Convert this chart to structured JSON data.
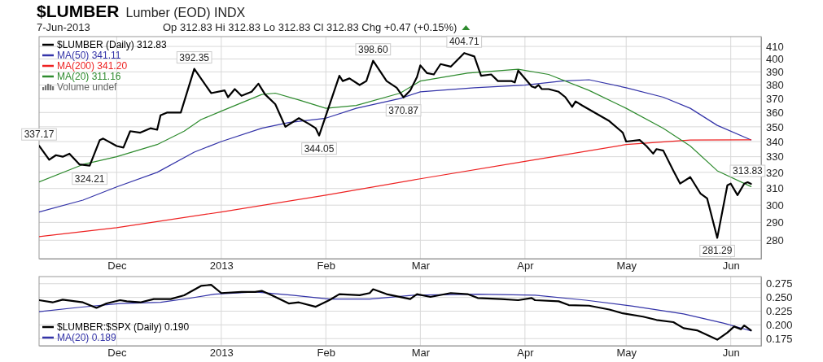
{
  "chart_data": [
    {
      "type": "line",
      "title": "$LUMBER",
      "subtitle": "Lumber (EOD) INDX",
      "log": true,
      "grid": true,
      "legend": "top left",
      "xlim": [
        "2012-11-08",
        "2013-06-10"
      ],
      "xticks": [
        {
          "value": "2012-12-01",
          "label": "Dec"
        },
        {
          "value": "2013-01-01",
          "label": "2013"
        },
        {
          "value": "2013-02-01",
          "label": "Feb"
        },
        {
          "value": "2013-03-01",
          "label": "Mar"
        },
        {
          "value": "2013-04-01",
          "label": "Apr"
        },
        {
          "value": "2013-05-01",
          "label": "May"
        },
        {
          "value": "2013-06-01",
          "label": "Jun"
        }
      ],
      "ylim": [
        270,
        418
      ],
      "yticks": [
        280,
        290,
        300,
        310,
        320,
        330,
        340,
        350,
        360,
        370,
        380,
        390,
        400,
        410
      ],
      "series": [
        {
          "name": "$LUMBER (Daily) 312.83",
          "color": "#000000",
          "x": [
            "2012-11-08",
            "2012-11-11",
            "2012-11-13",
            "2012-11-15",
            "2012-11-17",
            "2012-11-20",
            "2012-11-23",
            "2012-11-26",
            "2012-11-27",
            "2012-12-01",
            "2012-12-03",
            "2012-12-05",
            "2012-12-08",
            "2012-12-11",
            "2012-12-13",
            "2012-12-14",
            "2012-12-16",
            "2012-12-20",
            "2012-12-24",
            "2012-12-29",
            "2013-01-02",
            "2013-01-03",
            "2013-01-05",
            "2013-01-07",
            "2013-01-10",
            "2013-01-12",
            "2013-01-14",
            "2013-01-17",
            "2013-01-20",
            "2013-01-24",
            "2013-01-27",
            "2013-01-29",
            "2013-01-30",
            "2013-02-05",
            "2013-02-06",
            "2013-02-08",
            "2013-02-11",
            "2013-02-13",
            "2013-02-15",
            "2013-02-19",
            "2013-02-22",
            "2013-02-24",
            "2013-02-26",
            "2013-02-28",
            "2013-03-01",
            "2013-03-03",
            "2013-03-05",
            "2013-03-07",
            "2013-03-10",
            "2013-03-14",
            "2013-03-17",
            "2013-03-19",
            "2013-03-22",
            "2013-03-24",
            "2013-03-28",
            "2013-03-29",
            "2013-03-30",
            "2013-04-03",
            "2013-04-04",
            "2013-04-05",
            "2013-04-06",
            "2013-04-08",
            "2013-04-11",
            "2013-04-13",
            "2013-04-15",
            "2013-04-16",
            "2013-04-18",
            "2013-04-26",
            "2013-04-30",
            "2013-05-01",
            "2013-05-05",
            "2013-05-07",
            "2013-05-09",
            "2013-05-10",
            "2013-05-12",
            "2013-05-15",
            "2013-05-17",
            "2013-05-20",
            "2013-05-23",
            "2013-05-25",
            "2013-05-28",
            "2013-05-31",
            "2013-06-01",
            "2013-06-03",
            "2013-06-05",
            "2013-06-06",
            "2013-06-07"
          ],
          "values": [
            337.17,
            328,
            331,
            330,
            332,
            325,
            324.21,
            341,
            342,
            337,
            336,
            347,
            346,
            349,
            348,
            358,
            360,
            360,
            392.35,
            374,
            376,
            371,
            377,
            372,
            375,
            381,
            373,
            366,
            350,
            356,
            352,
            349,
            344.05,
            387,
            383,
            385,
            380,
            383,
            398.6,
            383,
            378,
            370.87,
            376,
            386,
            395,
            389,
            388,
            396,
            394,
            404.71,
            402,
            387,
            388,
            383,
            383,
            382,
            391,
            379,
            378,
            380,
            377,
            377,
            375,
            371,
            364,
            368,
            365,
            354,
            346,
            340,
            341,
            337,
            332,
            335,
            334,
            321,
            313,
            317,
            307,
            304,
            281.29,
            312,
            313,
            306,
            313,
            313.83,
            312.83
          ]
        },
        {
          "name": "MA(50) 341.11",
          "color": "#3333a8",
          "x": [
            "2012-11-08",
            "2012-11-21",
            "2012-12-01",
            "2012-12-13",
            "2012-12-24",
            "2013-01-01",
            "2013-01-13",
            "2013-01-21",
            "2013-02-01",
            "2013-02-10",
            "2013-02-23",
            "2013-03-01",
            "2013-03-17",
            "2013-04-01",
            "2013-04-12",
            "2013-04-20",
            "2013-05-01",
            "2013-05-12",
            "2013-05-20",
            "2013-05-28",
            "2013-06-07"
          ],
          "values": [
            296,
            303,
            311,
            320,
            333,
            340,
            349,
            353,
            356,
            363,
            370,
            375,
            378,
            380,
            383,
            384,
            378,
            371,
            363,
            351,
            341.11
          ]
        },
        {
          "name": "MA(200) 341.20",
          "color": "#ee2222",
          "x": [
            "2012-11-08",
            "2012-12-01",
            "2013-01-01",
            "2013-02-01",
            "2013-03-01",
            "2013-04-01",
            "2013-05-01",
            "2013-05-20",
            "2013-06-07"
          ],
          "values": [
            282,
            287,
            296,
            306,
            316,
            327,
            338,
            341,
            341.2
          ]
        },
        {
          "name": "MA(20) 311.16",
          "color": "#2e8b2e",
          "x": [
            "2012-11-08",
            "2012-11-21",
            "2012-12-01",
            "2012-12-13",
            "2012-12-21",
            "2012-12-26",
            "2013-01-01",
            "2013-01-13",
            "2013-01-17",
            "2013-01-24",
            "2013-02-01",
            "2013-02-10",
            "2013-02-23",
            "2013-03-01",
            "2013-03-15",
            "2013-03-30",
            "2013-04-08",
            "2013-04-20",
            "2013-05-01",
            "2013-05-12",
            "2013-05-20",
            "2013-05-28",
            "2013-06-07"
          ],
          "values": [
            314,
            325,
            330,
            338,
            347,
            355,
            361,
            373,
            374,
            369,
            363,
            365,
            374,
            383,
            389,
            392,
            388,
            376,
            363,
            349,
            337,
            321,
            311.16
          ]
        }
      ],
      "annotations": [
        "7-Jun-2013",
        "Op 312.83 Hi 312.83 Lo 312.83 Cl 312.83 Chg +0.47 (+0.15%)",
        "Volume undef",
        {
          "text": "337.17",
          "x": "2012-11-08",
          "y": 337.17
        },
        {
          "text": "324.21",
          "x": "2012-11-23",
          "y": 324.21
        },
        {
          "text": "392.35",
          "x": "2012-12-24",
          "y": 392.35
        },
        {
          "text": "344.05",
          "x": "2013-01-30",
          "y": 344.05
        },
        {
          "text": "398.60",
          "x": "2013-02-15",
          "y": 398.6
        },
        {
          "text": "370.87",
          "x": "2013-02-24",
          "y": 370.87
        },
        {
          "text": "404.71",
          "x": "2013-03-14",
          "y": 404.71
        },
        {
          "text": "281.29",
          "x": "2013-05-28",
          "y": 281.29
        },
        {
          "text": "313.83",
          "x": "2013-06-06",
          "y": 313.83
        }
      ]
    },
    {
      "type": "line",
      "grid": true,
      "legend": "bottom left",
      "xlim": [
        "2012-11-08",
        "2013-06-10"
      ],
      "xticks": [
        {
          "value": "2012-12-01",
          "label": "Dec"
        },
        {
          "value": "2013-01-01",
          "label": "2013"
        },
        {
          "value": "2013-02-01",
          "label": "Feb"
        },
        {
          "value": "2013-03-01",
          "label": "Mar"
        },
        {
          "value": "2013-04-01",
          "label": "Apr"
        },
        {
          "value": "2013-05-01",
          "label": "May"
        },
        {
          "value": "2013-06-01",
          "label": "Jun"
        }
      ],
      "ylim": [
        0.162,
        0.288
      ],
      "yticks": [
        0.175,
        {
          "value": 0.2,
          "label": "0.200"
        },
        0.225,
        {
          "value": 0.25,
          "label": "0.250"
        },
        0.275
      ],
      "series": [
        {
          "name": "$LUMBER:$SPX (Daily) 0.190",
          "color": "#000000",
          "x": [
            "2012-11-08",
            "2012-11-12",
            "2012-11-15",
            "2012-11-21",
            "2012-11-25",
            "2012-11-28",
            "2012-12-02",
            "2012-12-04",
            "2012-12-08",
            "2012-12-12",
            "2012-12-17",
            "2012-12-21",
            "2012-12-26",
            "2012-12-29",
            "2013-01-01",
            "2013-01-07",
            "2013-01-11",
            "2013-01-13",
            "2013-01-16",
            "2013-01-21",
            "2013-01-24",
            "2013-01-29",
            "2013-02-02",
            "2013-02-05",
            "2013-02-11",
            "2013-02-14",
            "2013-02-15",
            "2013-02-19",
            "2013-02-26",
            "2013-02-28",
            "2013-03-04",
            "2013-03-10",
            "2013-03-15",
            "2013-03-18",
            "2013-03-25",
            "2013-03-30",
            "2013-04-03",
            "2013-04-04",
            "2013-04-11",
            "2013-04-14",
            "2013-04-20",
            "2013-04-26",
            "2013-04-30",
            "2013-05-06",
            "2013-05-10",
            "2013-05-15",
            "2013-05-18",
            "2013-05-22",
            "2013-05-28",
            "2013-05-31",
            "2013-06-02",
            "2013-06-04",
            "2013-06-05",
            "2013-06-07"
          ],
          "values": [
            0.245,
            0.241,
            0.246,
            0.241,
            0.231,
            0.239,
            0.245,
            0.243,
            0.241,
            0.247,
            0.247,
            0.254,
            0.271,
            0.273,
            0.258,
            0.26,
            0.26,
            0.262,
            0.254,
            0.239,
            0.241,
            0.233,
            0.245,
            0.256,
            0.254,
            0.258,
            0.265,
            0.256,
            0.247,
            0.256,
            0.251,
            0.258,
            0.256,
            0.249,
            0.247,
            0.245,
            0.249,
            0.245,
            0.243,
            0.236,
            0.235,
            0.228,
            0.221,
            0.215,
            0.209,
            0.205,
            0.194,
            0.19,
            0.173,
            0.186,
            0.197,
            0.192,
            0.199,
            0.19
          ]
        },
        {
          "name": "MA(20) 0.189",
          "color": "#3333a8",
          "x": [
            "2012-11-08",
            "2012-11-20",
            "2012-12-02",
            "2012-12-14",
            "2012-12-22",
            "2012-12-30",
            "2013-01-11",
            "2013-01-22",
            "2013-02-02",
            "2013-02-14",
            "2013-02-27",
            "2013-03-18",
            "2013-04-04",
            "2013-04-19",
            "2013-05-03",
            "2013-05-18",
            "2013-05-30",
            "2013-06-07"
          ],
          "values": [
            0.224,
            0.232,
            0.239,
            0.241,
            0.248,
            0.256,
            0.26,
            0.254,
            0.247,
            0.247,
            0.254,
            0.256,
            0.254,
            0.245,
            0.234,
            0.22,
            0.203,
            0.189
          ]
        }
      ]
    }
  ]
}
